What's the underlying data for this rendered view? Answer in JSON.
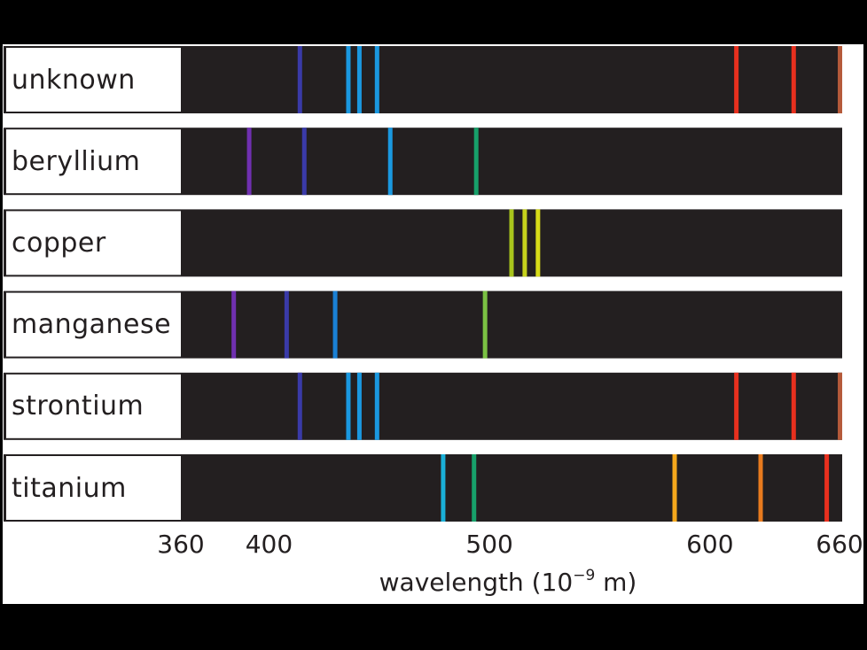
{
  "chart_data": {
    "type": "emission-spectra",
    "xlabel_prefix": "wavelength (10",
    "xlabel_exponent": "−9",
    "xlabel_suffix": " m)",
    "xlim": [
      360,
      660
    ],
    "ticks": [
      {
        "value": 360,
        "label": "360"
      },
      {
        "value": 400,
        "label": "400"
      },
      {
        "value": 500,
        "label": "500"
      },
      {
        "value": 600,
        "label": "600"
      },
      {
        "value": 660,
        "label": "660"
      }
    ],
    "spectra": [
      {
        "name": "unknown",
        "lines": [
          {
            "wavelength": 414,
            "color": "#3a3aa8"
          },
          {
            "wavelength": 436,
            "color": "#1a98e0"
          },
          {
            "wavelength": 441,
            "color": "#1a98e0"
          },
          {
            "wavelength": 449,
            "color": "#1a98e0"
          },
          {
            "wavelength": 612,
            "color": "#e8301e"
          },
          {
            "wavelength": 638,
            "color": "#e8301e"
          },
          {
            "wavelength": 659,
            "color": "#b55a3a"
          }
        ]
      },
      {
        "name": "beryllium",
        "lines": [
          {
            "wavelength": 391,
            "color": "#7030b0"
          },
          {
            "wavelength": 416,
            "color": "#3a3aa8"
          },
          {
            "wavelength": 455,
            "color": "#1a98e0"
          },
          {
            "wavelength": 494,
            "color": "#17a06a"
          }
        ]
      },
      {
        "name": "copper",
        "lines": [
          {
            "wavelength": 510,
            "color": "#a8c41c"
          },
          {
            "wavelength": 516,
            "color": "#c6d21c"
          },
          {
            "wavelength": 522,
            "color": "#d7db18"
          }
        ]
      },
      {
        "name": "manganese",
        "lines": [
          {
            "wavelength": 384,
            "color": "#7030b0"
          },
          {
            "wavelength": 408,
            "color": "#3a3aa8"
          },
          {
            "wavelength": 430,
            "color": "#1a80d4"
          },
          {
            "wavelength": 498,
            "color": "#7ac143"
          }
        ]
      },
      {
        "name": "strontium",
        "lines": [
          {
            "wavelength": 414,
            "color": "#3a3aa8"
          },
          {
            "wavelength": 436,
            "color": "#1a98e0"
          },
          {
            "wavelength": 441,
            "color": "#1a98e0"
          },
          {
            "wavelength": 449,
            "color": "#1a98e0"
          },
          {
            "wavelength": 612,
            "color": "#e8301e"
          },
          {
            "wavelength": 638,
            "color": "#e8301e"
          },
          {
            "wavelength": 659,
            "color": "#b55a3a"
          }
        ]
      },
      {
        "name": "titanium",
        "lines": [
          {
            "wavelength": 479,
            "color": "#1ab0d8"
          },
          {
            "wavelength": 493,
            "color": "#17a06a"
          },
          {
            "wavelength": 584,
            "color": "#f5a81c"
          },
          {
            "wavelength": 623,
            "color": "#e87a1e"
          },
          {
            "wavelength": 653,
            "color": "#e8301e"
          }
        ]
      }
    ]
  }
}
